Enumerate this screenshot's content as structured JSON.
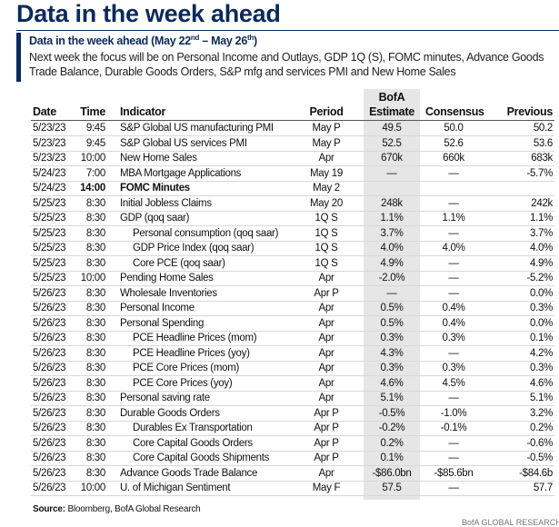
{
  "header": {
    "title": "Data in the week ahead",
    "subtitle": [
      "Data in the week ahead (May 22",
      "nd",
      " – May 26",
      "th",
      ")"
    ],
    "description": "Next week the focus will be on Personal Income and Outlays, GDP 1Q (S), FOMC minutes, Advance Goods Trade Balance, Durable Goods Orders, S&P mfg and services PMI and New Home Sales"
  },
  "table": {
    "columns": [
      "Date",
      "Time",
      "Indicator",
      "Period",
      "BofA",
      "Estimate",
      "Consensus",
      "Previous"
    ],
    "rows": [
      {
        "date": "5/23/23",
        "time": "9:45",
        "indicator": "S&P Global US manufacturing PMI",
        "period": "May P",
        "estimate": "49.5",
        "consensus": "50.0",
        "previous": "50.2"
      },
      {
        "date": "5/23/23",
        "time": "9:45",
        "indicator": "S&P Global US services PMI",
        "period": "May P",
        "estimate": "52.5",
        "consensus": "52.6",
        "previous": "53.6"
      },
      {
        "date": "5/23/23",
        "time": "10:00",
        "indicator": "New Home Sales",
        "period": "Apr",
        "estimate": "670k",
        "consensus": "660k",
        "previous": "683k"
      },
      {
        "date": "5/24/23",
        "time": "7:00",
        "indicator": "MBA Mortgage Applications",
        "period": "May 19",
        "estimate": "—",
        "consensus": "—",
        "previous": "-5.7%"
      },
      {
        "date": "5/24/23",
        "time": "14:00",
        "indicator": "FOMC Minutes",
        "period": "May 2",
        "bold": true
      },
      {
        "date": "5/25/23",
        "time": "8:30",
        "indicator": "Initial Jobless Claims",
        "period": "May 20",
        "estimate": "248k",
        "consensus": "—",
        "previous": "242k"
      },
      {
        "date": "5/25/23",
        "time": "8:30",
        "indicator": "GDP (qoq saar)",
        "period": "1Q S",
        "estimate": "1.1%",
        "consensus": "1.1%",
        "previous": "1.1%"
      },
      {
        "date": "5/25/23",
        "time": "8:30",
        "indicator": "Personal consumption (qoq saar)",
        "period": "1Q S",
        "estimate": "3.7%",
        "consensus": "—",
        "previous": "3.7%",
        "indent": true
      },
      {
        "date": "5/25/23",
        "time": "8:30",
        "indicator": "GDP Price Index (qoq saar)",
        "period": "1Q S",
        "estimate": "4.0%",
        "consensus": "4.0%",
        "previous": "4.0%",
        "indent": true
      },
      {
        "date": "5/25/23",
        "time": "8:30",
        "indicator": "Core PCE (qoq saar)",
        "period": "1Q S",
        "estimate": "4.9%",
        "consensus": "—",
        "previous": "4.9%",
        "indent": true
      },
      {
        "date": "5/25/23",
        "time": "10:00",
        "indicator": "Pending Home Sales",
        "period": "Apr",
        "estimate": "-2.0%",
        "consensus": "—",
        "previous": "-5.2%"
      },
      {
        "date": "5/26/23",
        "time": "8:30",
        "indicator": "Wholesale Inventories",
        "period": "Apr P",
        "estimate": "—",
        "consensus": "—",
        "previous": "0.0%"
      },
      {
        "date": "5/26/23",
        "time": "8:30",
        "indicator": "Personal Income",
        "period": "Apr",
        "estimate": "0.5%",
        "consensus": "0.4%",
        "previous": "0.3%"
      },
      {
        "date": "5/26/23",
        "time": "8:30",
        "indicator": "Personal Spending",
        "period": "Apr",
        "estimate": "0.5%",
        "consensus": "0.4%",
        "previous": "0.0%"
      },
      {
        "date": "5/26/23",
        "time": "8:30",
        "indicator": "PCE Headline Prices (mom)",
        "period": "Apr",
        "estimate": "0.3%",
        "consensus": "0.3%",
        "previous": "0.1%",
        "indent": true
      },
      {
        "date": "5/26/23",
        "time": "8:30",
        "indicator": "PCE Headline Prices (yoy)",
        "period": "Apr",
        "estimate": "4.3%",
        "consensus": "—",
        "previous": "4.2%",
        "indent": true
      },
      {
        "date": "5/26/23",
        "time": "8:30",
        "indicator": "PCE Core Prices (mom)",
        "period": "Apr",
        "estimate": "0.3%",
        "consensus": "0.3%",
        "previous": "0.3%",
        "indent": true
      },
      {
        "date": "5/26/23",
        "time": "8:30",
        "indicator": "PCE Core Prices (yoy)",
        "period": "Apr",
        "estimate": "4.6%",
        "consensus": "4.5%",
        "previous": "4.6%",
        "indent": true
      },
      {
        "date": "5/26/23",
        "time": "8:30",
        "indicator": "Personal saving rate",
        "period": "Apr",
        "estimate": "5.1%",
        "consensus": "—",
        "previous": "5.1%"
      },
      {
        "date": "5/26/23",
        "time": "8:30",
        "indicator": "Durable Goods Orders",
        "period": "Apr P",
        "estimate": "-0.5%",
        "consensus": "-1.0%",
        "previous": "3.2%"
      },
      {
        "date": "5/26/23",
        "time": "8:30",
        "indicator": "Durables Ex Transportation",
        "period": "Apr P",
        "estimate": "-0.2%",
        "consensus": "-0.1%",
        "previous": "0.2%",
        "indent": true
      },
      {
        "date": "5/26/23",
        "time": "8:30",
        "indicator": "Core Capital Goods Orders",
        "period": "Apr P",
        "estimate": "0.2%",
        "consensus": "—",
        "previous": "-0.6%",
        "indent": true
      },
      {
        "date": "5/26/23",
        "time": "8:30",
        "indicator": "Core Capital Goods Shipments",
        "period": "Apr P",
        "estimate": "0.1%",
        "consensus": "—",
        "previous": "-0.5%",
        "indent": true
      },
      {
        "date": "5/26/23",
        "time": "8:30",
        "indicator": "Advance Goods Trade Balance",
        "period": "Apr",
        "estimate": "-$86.0bn",
        "consensus": "-$85.6bn",
        "previous": "-$84.6b"
      },
      {
        "date": "5/26/23",
        "time": "10:00",
        "indicator": "U. of Michigan Sentiment",
        "period": "May F",
        "estimate": "57.5",
        "consensus": "—",
        "previous": "57.7"
      }
    ]
  },
  "footer": {
    "source_label": "Source:",
    "source": "Bloomberg, BofA Global Research",
    "brand": "BofA GLOBAL RESEARCH"
  }
}
